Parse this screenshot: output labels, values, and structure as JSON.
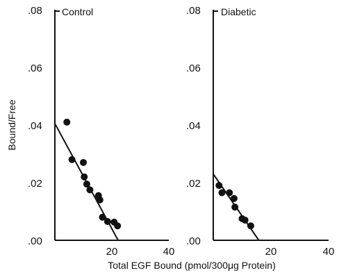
{
  "chart_data": [
    {
      "type": "scatter",
      "title": "Control",
      "xlabel": "Total EGF Bound (pmol/300μg Protein)",
      "ylabel": "Bound/Free",
      "xlim": [
        0,
        40
      ],
      "ylim": [
        0,
        0.08
      ],
      "x_ticks": [
        "20",
        "40"
      ],
      "y_ticks": [
        ".00",
        ".02",
        ".04",
        ".06",
        ".08"
      ],
      "grid": false,
      "points": [
        {
          "x": 4.2,
          "y": 0.041
        },
        {
          "x": 6.0,
          "y": 0.028
        },
        {
          "x": 10.0,
          "y": 0.027
        },
        {
          "x": 10.3,
          "y": 0.022
        },
        {
          "x": 11.2,
          "y": 0.0195
        },
        {
          "x": 12.3,
          "y": 0.0175
        },
        {
          "x": 15.3,
          "y": 0.0155
        },
        {
          "x": 15.8,
          "y": 0.014
        },
        {
          "x": 16.7,
          "y": 0.008
        },
        {
          "x": 18.5,
          "y": 0.0065
        },
        {
          "x": 20.8,
          "y": 0.0063
        },
        {
          "x": 22.0,
          "y": 0.005
        }
      ],
      "fit_line": {
        "x": [
          0,
          22.2
        ],
        "y": [
          0.0405,
          0.0
        ]
      }
    },
    {
      "type": "scatter",
      "title": "Diabetic",
      "xlim": [
        0,
        40
      ],
      "ylim": [
        0,
        0.08
      ],
      "x_ticks": [
        "20",
        "40"
      ],
      "y_ticks": [
        ".00",
        ".02",
        ".04",
        ".06",
        ".08"
      ],
      "grid": false,
      "points": [
        {
          "x": 2.0,
          "y": 0.019
        },
        {
          "x": 3.0,
          "y": 0.0165
        },
        {
          "x": 5.6,
          "y": 0.0165
        },
        {
          "x": 7.2,
          "y": 0.0145
        },
        {
          "x": 7.5,
          "y": 0.0115
        },
        {
          "x": 10.0,
          "y": 0.0075
        },
        {
          "x": 11.0,
          "y": 0.007
        },
        {
          "x": 13.0,
          "y": 0.005
        }
      ],
      "fit_line": {
        "x": [
          0,
          15.8
        ],
        "y": [
          0.023,
          0.0
        ]
      }
    }
  ]
}
